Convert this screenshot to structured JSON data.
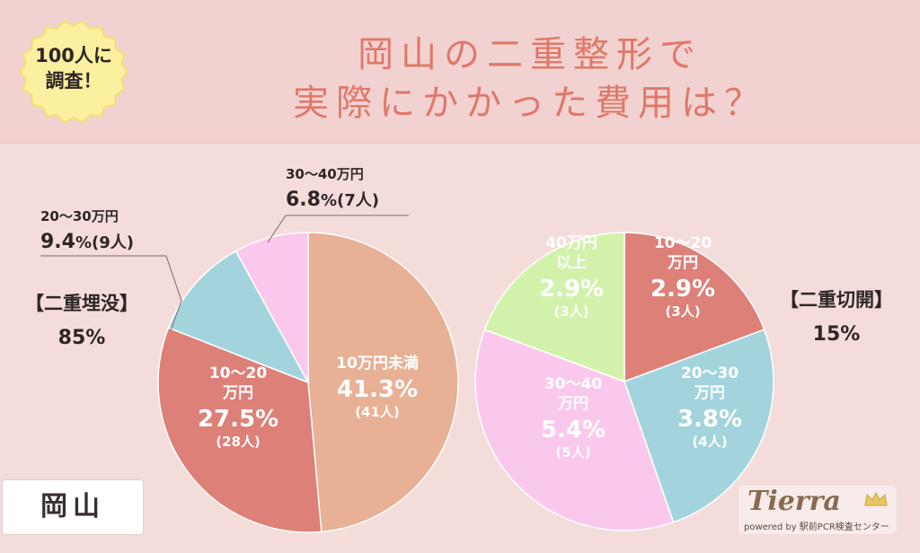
{
  "badge": {
    "line1": "100人に",
    "line2": "調査！"
  },
  "title": {
    "line1": "岡山の二重整形で",
    "line2": "実際にかかった費用は？"
  },
  "place_label": "岡山",
  "logo": {
    "main": "Tierra",
    "sub": "powered by 駅前PCR検査センター"
  },
  "colors": {
    "salmon": "#e8b094",
    "red": "#dd8078",
    "blue": "#a3d4dd",
    "pink": "#fbc8ed",
    "green": "#d2f2ac",
    "title": "#e07868"
  },
  "chart_data": [
    {
      "type": "pie",
      "group": "【二重埋没】",
      "group_share": "85%",
      "slices": [
        {
          "label": "10万円未満",
          "percent": 41.3,
          "pct_text": "41.3",
          "count": "(41人)",
          "color": "#e8b094"
        },
        {
          "label": "10〜20万円",
          "percent": 27.5,
          "pct_text": "27.5",
          "count": "(28人)",
          "color": "#dd8078"
        },
        {
          "label": "20〜30万円",
          "percent": 9.4,
          "pct_text": "9.4",
          "count": "(9人)",
          "color": "#a3d4dd"
        },
        {
          "label": "30〜40万円",
          "percent": 6.8,
          "pct_text": "6.8",
          "count": "(7人)",
          "color": "#fbc8ed"
        }
      ]
    },
    {
      "type": "pie",
      "group": "【二重切開】",
      "group_share": "15%",
      "slices": [
        {
          "label": "10〜20万円",
          "percent": 2.9,
          "pct_text": "2.9",
          "count": "(3人)",
          "color": "#dd8078"
        },
        {
          "label": "20〜30万円",
          "percent": 3.8,
          "pct_text": "3.8",
          "count": "(4人)",
          "color": "#a3d4dd"
        },
        {
          "label": "30〜40万円",
          "percent": 5.4,
          "pct_text": "5.4",
          "count": "(5人)",
          "color": "#fbc8ed"
        },
        {
          "label": "40万円以上",
          "percent": 2.9,
          "pct_text": "2.9",
          "count": "(3人)",
          "color": "#d2f2ac"
        }
      ]
    }
  ]
}
